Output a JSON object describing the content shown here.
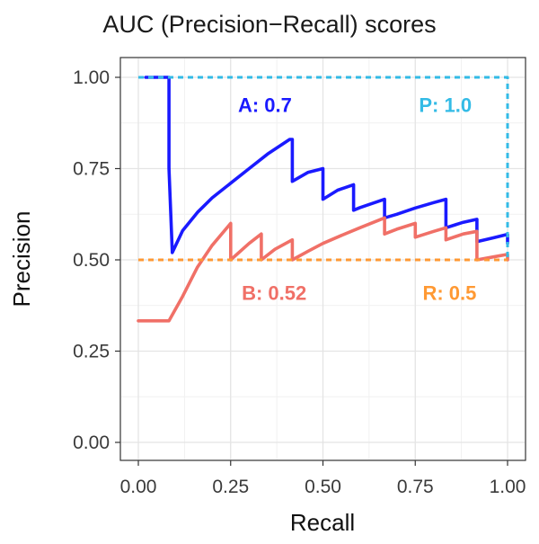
{
  "chart_data": {
    "type": "line",
    "title": "AUC (Precision−Recall) scores",
    "xlabel": "Recall",
    "ylabel": "Precision",
    "xlim": [
      0,
      1
    ],
    "ylim": [
      0,
      1
    ],
    "xticks": [
      "0.00",
      "0.25",
      "0.50",
      "0.75",
      "1.00"
    ],
    "yticks": [
      "0.00",
      "0.25",
      "0.50",
      "0.75",
      "1.00"
    ],
    "grid": true,
    "series": [
      {
        "name": "A",
        "color": "#1a1aff",
        "style": "solid",
        "x": [
          0.02,
          0.083,
          0.083,
          0.092,
          0.12,
          0.16,
          0.2,
          0.25,
          0.3,
          0.35,
          0.41,
          0.417,
          0.417,
          0.46,
          0.5,
          0.5,
          0.54,
          0.583,
          0.583,
          0.6,
          0.667,
          0.667,
          0.7,
          0.75,
          0.8,
          0.833,
          0.833,
          0.88,
          0.917,
          0.917,
          0.96,
          1.0,
          1.0
        ],
        "y": [
          1.0,
          1.0,
          0.75,
          0.52,
          0.58,
          0.63,
          0.67,
          0.71,
          0.75,
          0.79,
          0.83,
          0.83,
          0.715,
          0.74,
          0.75,
          0.666,
          0.691,
          0.706,
          0.636,
          0.643,
          0.666,
          0.615,
          0.625,
          0.642,
          0.657,
          0.666,
          0.588,
          0.603,
          0.611,
          0.55,
          0.56,
          0.57,
          0.545
        ]
      },
      {
        "name": "B",
        "color": "#f07067",
        "style": "solid",
        "x": [
          0.0,
          0.083,
          0.12,
          0.16,
          0.2,
          0.25,
          0.25,
          0.3,
          0.333,
          0.333,
          0.37,
          0.417,
          0.417,
          0.46,
          0.5,
          0.55,
          0.6,
          0.667,
          0.667,
          0.7,
          0.75,
          0.75,
          0.8,
          0.833,
          0.833,
          0.88,
          0.917,
          0.917,
          0.96,
          1.0,
          1.0
        ],
        "y": [
          0.333,
          0.333,
          0.4,
          0.48,
          0.54,
          0.6,
          0.5,
          0.545,
          0.571,
          0.5,
          0.529,
          0.555,
          0.5,
          0.524,
          0.545,
          0.567,
          0.588,
          0.615,
          0.571,
          0.584,
          0.6,
          0.562,
          0.578,
          0.588,
          0.555,
          0.571,
          0.578,
          0.5,
          0.508,
          0.515,
          0.5
        ]
      },
      {
        "name": "P",
        "color": "#33bbe6",
        "style": "dotted",
        "x": [
          0.0,
          1.0,
          1.0
        ],
        "y": [
          1.0,
          1.0,
          0.5
        ]
      },
      {
        "name": "R",
        "color": "#ff9933",
        "style": "dotted",
        "x": [
          0.0,
          1.0
        ],
        "y": [
          0.5,
          0.5
        ]
      }
    ],
    "annotations": [
      {
        "text": "A: 0.7",
        "x": 0.27,
        "y": 0.905,
        "color": "#1a1aff"
      },
      {
        "text": "P: 1.0",
        "x": 0.76,
        "y": 0.905,
        "color": "#33bbe6"
      },
      {
        "text": "B: 0.52",
        "x": 0.28,
        "y": 0.39,
        "color": "#f07067"
      },
      {
        "text": "R: 0.5",
        "x": 0.77,
        "y": 0.39,
        "color": "#ff9933"
      }
    ]
  }
}
